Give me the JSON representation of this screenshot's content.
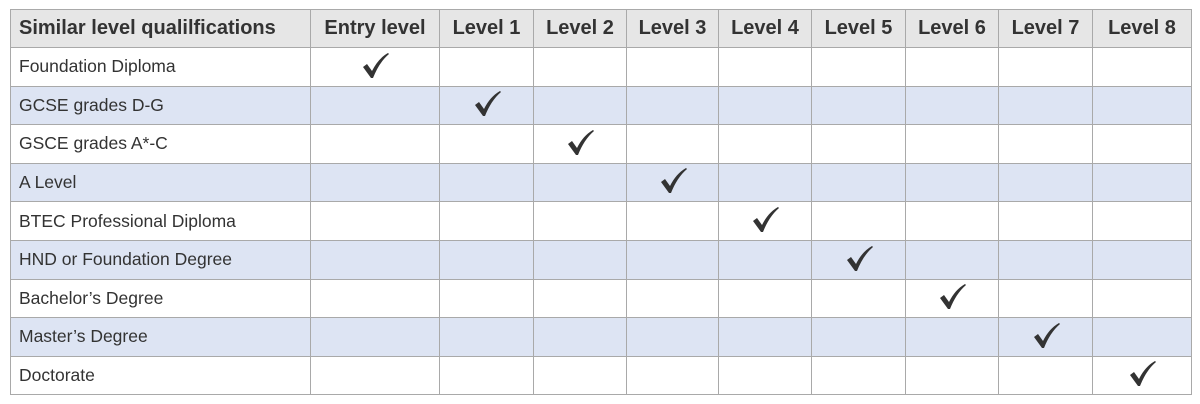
{
  "table": {
    "headers": [
      "Similar level qualilfications",
      "Entry level",
      "Level 1",
      "Level 2",
      "Level 3",
      "Level 4",
      "Level 5",
      "Level 6",
      "Level 7",
      "Level 8"
    ],
    "rows": [
      {
        "qualification": "Foundation Diploma",
        "level": "Entry level"
      },
      {
        "qualification": "GCSE grades D-G",
        "level": "Level 1"
      },
      {
        "qualification": "GSCE grades A*-C",
        "level": "Level 2"
      },
      {
        "qualification": "A Level",
        "level": "Level 3"
      },
      {
        "qualification": "BTEC Professional Diploma",
        "level": "Level 4"
      },
      {
        "qualification": "HND or Foundation Degree",
        "level": "Level 5"
      },
      {
        "qualification": "Bachelor’s Degree",
        "level": "Level 6"
      },
      {
        "qualification": "Master’s Degree",
        "level": "Level 7"
      },
      {
        "qualification": "Doctorate",
        "level": "Level 8"
      }
    ],
    "check_icon": "checkmark-icon",
    "colors": {
      "header_bg": "#e6e6e6",
      "alt_row_bg": "#dde4f3",
      "border": "#a9a9a9",
      "check": "#333333"
    }
  }
}
